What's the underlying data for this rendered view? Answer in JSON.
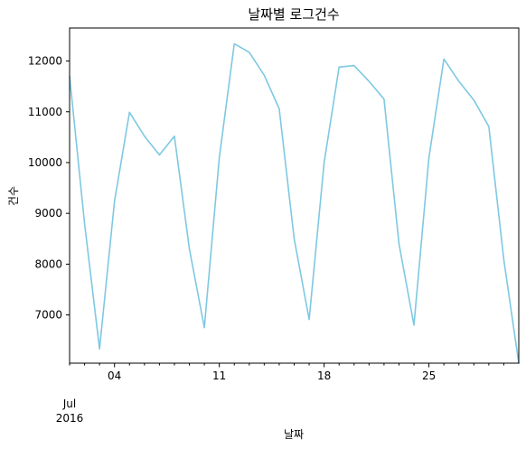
{
  "chart_data": {
    "type": "line",
    "title": "날짜별 로그건수",
    "xlabel": "날짜",
    "ylabel": "건수",
    "x": [
      "2016-07-01",
      "2016-07-02",
      "2016-07-03",
      "2016-07-04",
      "2016-07-05",
      "2016-07-06",
      "2016-07-07",
      "2016-07-08",
      "2016-07-09",
      "2016-07-10",
      "2016-07-11",
      "2016-07-12",
      "2016-07-13",
      "2016-07-14",
      "2016-07-15",
      "2016-07-16",
      "2016-07-17",
      "2016-07-18",
      "2016-07-19",
      "2016-07-20",
      "2016-07-21",
      "2016-07-22",
      "2016-07-23",
      "2016-07-24",
      "2016-07-25",
      "2016-07-26",
      "2016-07-27",
      "2016-07-28",
      "2016-07-29",
      "2016-07-30",
      "2016-07-31"
    ],
    "series": [
      {
        "values": [
          11700,
          8800,
          6330,
          9240,
          10990,
          10520,
          10150,
          10520,
          8300,
          6750,
          10100,
          12340,
          12170,
          11720,
          11060,
          8500,
          6910,
          10000,
          11880,
          11910,
          11600,
          11250,
          8400,
          6800,
          10100,
          12040,
          11600,
          11230,
          10710,
          8090,
          5340
        ]
      }
    ],
    "line_color": "#7ec8e3",
    "ylim": [
      6050,
      12650
    ],
    "y_ticks": [
      7000,
      8000,
      9000,
      10000,
      11000,
      12000
    ],
    "y_tick_labels": [
      "7000",
      "8000",
      "9000",
      "10000",
      "11000",
      "12000"
    ],
    "x_major_ticks": [
      "2016-07-04",
      "2016-07-11",
      "2016-07-18",
      "2016-07-25"
    ],
    "x_major_labels": [
      "04",
      "11",
      "18",
      "25"
    ],
    "x_minor_ticks": [
      "2016-07-01",
      "2016-07-02",
      "2016-07-03",
      "2016-07-05",
      "2016-07-06",
      "2016-07-07",
      "2016-07-08",
      "2016-07-09",
      "2016-07-10",
      "2016-07-12",
      "2016-07-13",
      "2016-07-14",
      "2016-07-15",
      "2016-07-16",
      "2016-07-17",
      "2016-07-19",
      "2016-07-20",
      "2016-07-21",
      "2016-07-22",
      "2016-07-23",
      "2016-07-24",
      "2016-07-26",
      "2016-07-27",
      "2016-07-28",
      "2016-07-29",
      "2016-07-30"
    ],
    "x_month_label": "Jul",
    "x_year_label": "2016",
    "grid": false,
    "legend": "none"
  }
}
